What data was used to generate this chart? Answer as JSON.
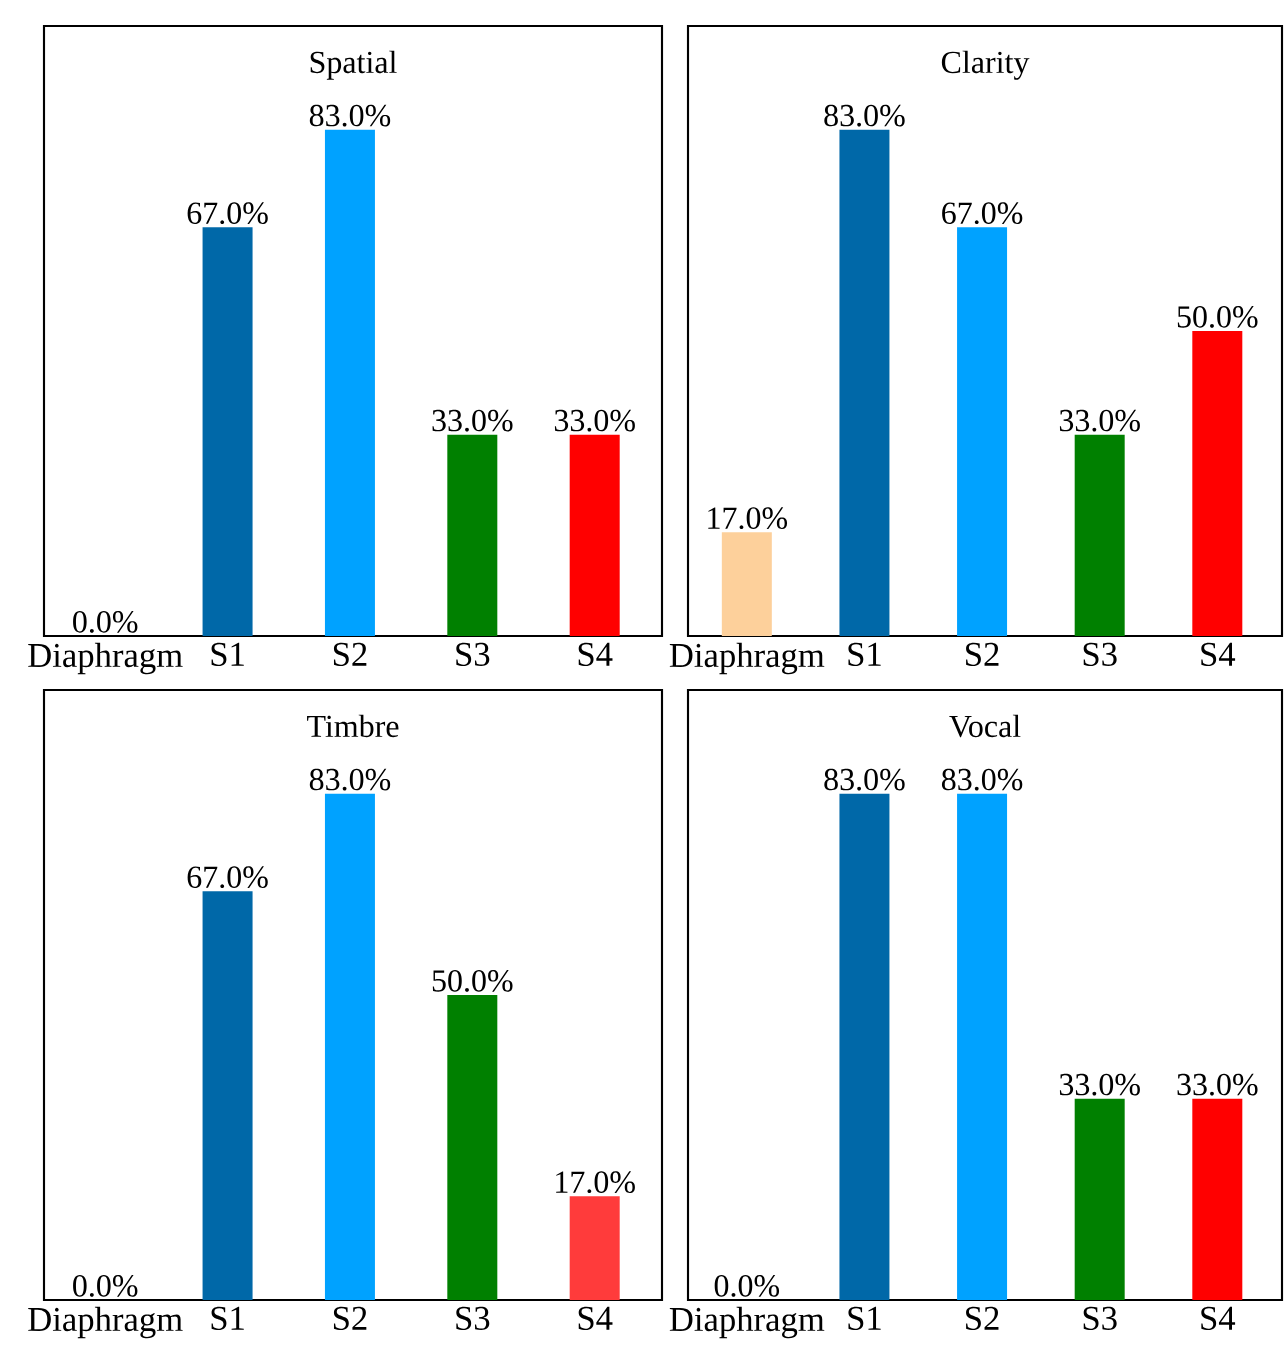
{
  "chart_data": [
    {
      "type": "bar",
      "title": "Spatial",
      "categories": [
        "Diaphragm",
        "S1",
        "S2",
        "S3",
        "S4"
      ],
      "values": [
        0.0,
        67.0,
        83.0,
        33.0,
        33.0
      ],
      "colors": [
        "#fdd09b",
        "#0068a8",
        "#00a2ff",
        "#008000",
        "#ff0000"
      ],
      "value_labels": [
        "0.0%",
        "67.0%",
        "83.0%",
        "33.0%",
        "33.0%"
      ],
      "ylim": [
        0,
        100
      ],
      "tick_labels": "x"
    },
    {
      "type": "bar",
      "title": "Clarity",
      "categories": [
        "Diaphragm",
        "S1",
        "S2",
        "S3",
        "S4"
      ],
      "values": [
        17.0,
        83.0,
        67.0,
        33.0,
        50.0
      ],
      "colors": [
        "#fdd09b",
        "#0068a8",
        "#00a2ff",
        "#008000",
        "#ff0000"
      ],
      "value_labels": [
        "17.0%",
        "83.0%",
        "67.0%",
        "33.0%",
        "50.0%"
      ],
      "ylim": [
        0,
        100
      ],
      "tick_labels": "x"
    },
    {
      "type": "bar",
      "title": "Timbre",
      "categories": [
        "Diaphragm",
        "S1",
        "S2",
        "S3",
        "S4"
      ],
      "values": [
        0.0,
        67.0,
        83.0,
        50.0,
        17.0
      ],
      "colors": [
        "#fdd09b",
        "#0068a8",
        "#00a2ff",
        "#008000",
        "#ff3b3b"
      ],
      "value_labels": [
        "0.0%",
        "67.0%",
        "83.0%",
        "50.0%",
        "17.0%"
      ],
      "ylim": [
        0,
        100
      ],
      "tick_labels": "x"
    },
    {
      "type": "bar",
      "title": "Vocal",
      "categories": [
        "Diaphragm",
        "S1",
        "S2",
        "S3",
        "S4"
      ],
      "values": [
        0.0,
        83.0,
        83.0,
        33.0,
        33.0
      ],
      "colors": [
        "#fdd09b",
        "#0068a8",
        "#00a2ff",
        "#008000",
        "#ff0000"
      ],
      "value_labels": [
        "0.0%",
        "83.0%",
        "83.0%",
        "33.0%",
        "33.0%"
      ],
      "ylim": [
        0,
        100
      ],
      "tick_labels": "x"
    }
  ]
}
